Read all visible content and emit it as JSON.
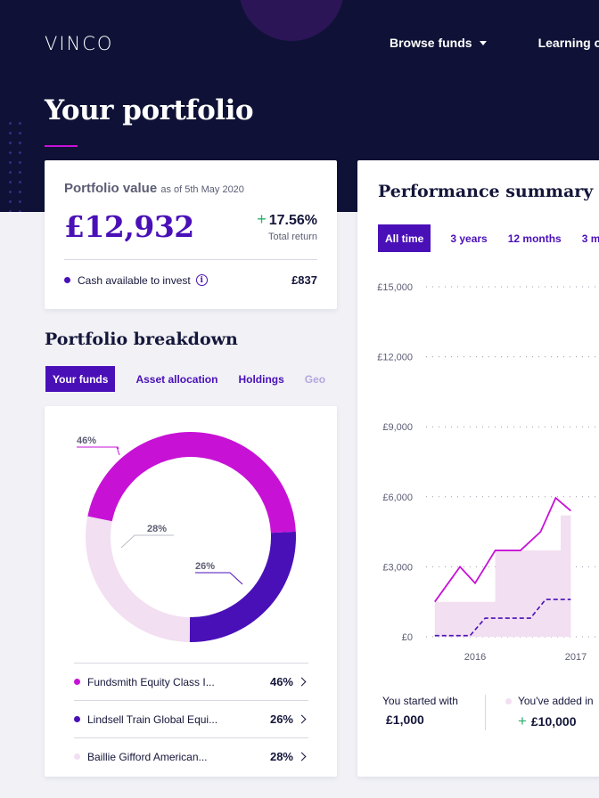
{
  "header": {
    "logo_text": "VINCO",
    "nav": [
      {
        "label": "Browse funds",
        "has_dropdown": true
      },
      {
        "label": "Learning centre"
      }
    ],
    "page_title": "Your portfolio"
  },
  "portfolio_value": {
    "label": "Portfolio value",
    "as_of": "as of 5th May 2020",
    "amount": "£12,932",
    "return_value": "17.56%",
    "return_label": "Total return",
    "cash_label": "Cash available to invest",
    "cash_amount": "£837",
    "info_icon": "info-icon"
  },
  "breakdown": {
    "title": "Portfolio breakdown",
    "tabs": [
      "Your funds",
      "Asset allocation",
      "Holdings",
      "Geo"
    ],
    "active_tab": "Your funds",
    "donut_labels": [
      "46%",
      "28%",
      "26%"
    ],
    "funds": [
      {
        "name": "Fundsmith Equity Class I...",
        "percent": "46%",
        "color": "#c712d6",
        "share": 46
      },
      {
        "name": "Lindsell Train Global Equi...",
        "percent": "26%",
        "color": "#4a10b8",
        "share": 26
      },
      {
        "name": "Baillie Gifford American...",
        "percent": "28%",
        "color": "#f2dff1",
        "share": 28
      }
    ]
  },
  "performance": {
    "title": "Performance summary",
    "tabs": [
      "All time",
      "3 years",
      "12 months",
      "3 m"
    ],
    "active_tab": "All time",
    "started_label": "You started with",
    "started_value": "£1,000",
    "added_label": "You've added in",
    "added_value": "£10,000"
  },
  "chart_data": {
    "type": "line",
    "y_ticks": [
      "£15,000",
      "£12,000",
      "£9,000",
      "£6,000",
      "£3,000",
      "£0"
    ],
    "ylim": [
      0,
      15000
    ],
    "x_ticks": [
      "2016",
      "2017"
    ],
    "grid": true,
    "series": [
      {
        "style": "solid",
        "color": "#c712d6",
        "points": [
          [
            2015.6,
            1500
          ],
          [
            2015.85,
            3000
          ],
          [
            2016.0,
            2300
          ],
          [
            2016.2,
            3700
          ],
          [
            2016.45,
            3700
          ],
          [
            2016.65,
            4500
          ],
          [
            2016.8,
            5950
          ],
          [
            2016.95,
            5400
          ]
        ]
      },
      {
        "style": "area",
        "color": "#f2dff1",
        "points": [
          [
            2015.6,
            1500
          ],
          [
            2016.2,
            1500
          ],
          [
            2016.2,
            3700
          ],
          [
            2016.85,
            3700
          ],
          [
            2016.85,
            5200
          ],
          [
            2016.95,
            5200
          ]
        ]
      },
      {
        "style": "dashed",
        "color": "#4a10b8",
        "points": [
          [
            2015.6,
            50
          ],
          [
            2015.95,
            50
          ],
          [
            2016.1,
            800
          ],
          [
            2016.55,
            800
          ],
          [
            2016.7,
            1600
          ],
          [
            2016.95,
            1600
          ]
        ]
      }
    ]
  }
}
